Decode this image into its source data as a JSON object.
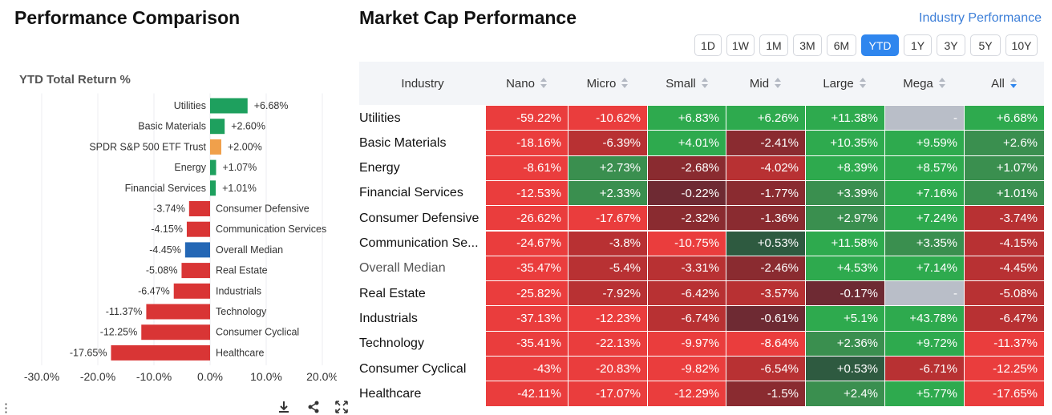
{
  "left": {
    "title": "Performance Comparison",
    "chart_label": "YTD Total Return %"
  },
  "right": {
    "title": "Market Cap Performance",
    "link": "Industry Performance",
    "timeframes": [
      "1D",
      "1W",
      "1M",
      "3M",
      "6M",
      "YTD",
      "1Y",
      "3Y",
      "5Y",
      "10Y"
    ],
    "active_timeframe": "YTD",
    "columns": [
      "Industry",
      "Nano",
      "Micro",
      "Small",
      "Mid",
      "Large",
      "Mega",
      "All"
    ],
    "sorted_column": "All",
    "sort_direction": "descending",
    "rows": [
      {
        "industry": "Utilities",
        "values": [
          "-59.22%",
          "-10.62%",
          "+6.83%",
          "+6.26%",
          "+11.38%",
          "-",
          "+6.68%"
        ]
      },
      {
        "industry": "Basic Materials",
        "values": [
          "-18.16%",
          "-6.39%",
          "+4.01%",
          "-2.41%",
          "+10.35%",
          "+9.59%",
          "+2.6%"
        ]
      },
      {
        "industry": "Energy",
        "values": [
          "-8.61%",
          "+2.73%",
          "-2.68%",
          "-4.02%",
          "+8.39%",
          "+8.57%",
          "+1.07%"
        ]
      },
      {
        "industry": "Financial Services",
        "values": [
          "-12.53%",
          "+2.33%",
          "-0.22%",
          "-1.77%",
          "+3.39%",
          "+7.16%",
          "+1.01%"
        ]
      },
      {
        "industry": "Consumer Defensive",
        "values": [
          "-26.62%",
          "-17.67%",
          "-2.32%",
          "-1.36%",
          "+2.97%",
          "+7.24%",
          "-3.74%"
        ]
      },
      {
        "industry": "Communication Se...",
        "values": [
          "-24.67%",
          "-3.8%",
          "-10.75%",
          "+0.53%",
          "+11.58%",
          "+3.35%",
          "-4.15%"
        ]
      },
      {
        "industry": "Overall Median",
        "values": [
          "-35.47%",
          "-5.4%",
          "-3.31%",
          "-2.46%",
          "+4.53%",
          "+7.14%",
          "-4.45%"
        ]
      },
      {
        "industry": "Real Estate",
        "values": [
          "-25.82%",
          "-7.92%",
          "-6.42%",
          "-3.57%",
          "-0.17%",
          "-",
          "-5.08%"
        ]
      },
      {
        "industry": "Industrials",
        "values": [
          "-37.13%",
          "-12.23%",
          "-6.74%",
          "-0.61%",
          "+5.1%",
          "+43.78%",
          "-6.47%"
        ]
      },
      {
        "industry": "Technology",
        "values": [
          "-35.41%",
          "-22.13%",
          "-9.97%",
          "-8.64%",
          "+2.36%",
          "+9.72%",
          "-11.37%"
        ]
      },
      {
        "industry": "Consumer Cyclical",
        "values": [
          "-43%",
          "-20.83%",
          "-9.82%",
          "-6.54%",
          "+0.53%",
          "-6.71%",
          "-12.25%"
        ]
      },
      {
        "industry": "Healthcare",
        "values": [
          "-42.11%",
          "-17.07%",
          "-12.29%",
          "-1.5%",
          "+2.4%",
          "+5.77%",
          "-17.65%"
        ]
      }
    ]
  },
  "colors": {
    "positive_bar": "#1ea05e",
    "negative_bar": "#d93535",
    "etf_bar": "#f0a04b",
    "median_bar": "#2467b5",
    "accent": "#2f86ee",
    "link": "#3d7fd8"
  },
  "chart_data": [
    {
      "type": "bar",
      "orientation": "horizontal",
      "title": "YTD Total Return %",
      "categories": [
        "Utilities",
        "Basic Materials",
        "SPDR S&P 500 ETF Trust",
        "Energy",
        "Financial Services",
        "Consumer Defensive",
        "Communication Services",
        "Overall Median",
        "Real Estate",
        "Industrials",
        "Technology",
        "Consumer Cyclical",
        "Healthcare"
      ],
      "values": [
        6.68,
        2.6,
        2.0,
        1.07,
        1.01,
        -3.74,
        -4.15,
        -4.45,
        -5.08,
        -6.47,
        -11.37,
        -12.25,
        -17.65
      ],
      "data_labels": [
        "+6.68%",
        "+2.60%",
        "+2.00%",
        "+1.07%",
        "+1.01%",
        "-3.74%",
        "-4.15%",
        "-4.45%",
        "-5.08%",
        "-6.47%",
        "-11.37%",
        "-12.25%",
        "-17.65%"
      ],
      "highlight": {
        "SPDR S&P 500 ETF Trust": "etf",
        "Overall Median": "median"
      },
      "xlim": [
        -30,
        20
      ],
      "xticks": [
        -30,
        -20,
        -10,
        0,
        10,
        20
      ],
      "xtick_labels": [
        "-30.0%",
        "-20.0%",
        "-10.0%",
        "0.0%",
        "10.0%",
        "20.0%"
      ]
    },
    {
      "type": "heatmap",
      "title": "Market Cap Performance",
      "rows": [
        "Utilities",
        "Basic Materials",
        "Energy",
        "Financial Services",
        "Consumer Defensive",
        "Communication Se...",
        "Overall Median",
        "Real Estate",
        "Industrials",
        "Technology",
        "Consumer Cyclical",
        "Healthcare"
      ],
      "columns": [
        "Nano",
        "Micro",
        "Small",
        "Mid",
        "Large",
        "Mega",
        "All"
      ],
      "values": [
        [
          -59.22,
          -10.62,
          6.83,
          6.26,
          11.38,
          null,
          6.68
        ],
        [
          -18.16,
          -6.39,
          4.01,
          -2.41,
          10.35,
          9.59,
          2.6
        ],
        [
          -8.61,
          2.73,
          -2.68,
          -4.02,
          8.39,
          8.57,
          1.07
        ],
        [
          -12.53,
          2.33,
          -0.22,
          -1.77,
          3.39,
          7.16,
          1.01
        ],
        [
          -26.62,
          -17.67,
          -2.32,
          -1.36,
          2.97,
          7.24,
          -3.74
        ],
        [
          -24.67,
          -3.8,
          -10.75,
          0.53,
          11.58,
          3.35,
          -4.15
        ],
        [
          -35.47,
          -5.4,
          -3.31,
          -2.46,
          4.53,
          7.14,
          -4.45
        ],
        [
          -25.82,
          -7.92,
          -6.42,
          -3.57,
          -0.17,
          null,
          -5.08
        ],
        [
          -37.13,
          -12.23,
          -6.74,
          -0.61,
          5.1,
          43.78,
          -6.47
        ],
        [
          -35.41,
          -22.13,
          -9.97,
          -8.64,
          2.36,
          9.72,
          -11.37
        ],
        [
          -43,
          -20.83,
          -9.82,
          -6.54,
          0.53,
          -6.71,
          -12.25
        ],
        [
          -42.11,
          -17.07,
          -12.29,
          -1.5,
          2.4,
          5.77,
          -17.65
        ]
      ]
    }
  ]
}
